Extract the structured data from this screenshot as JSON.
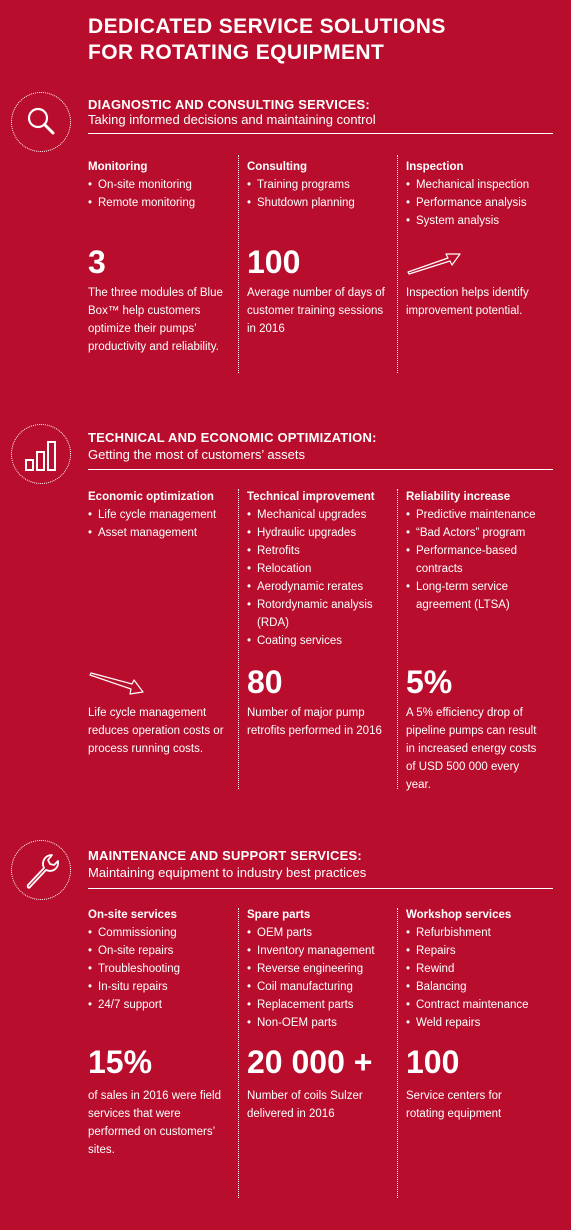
{
  "page": {
    "title_line1": "DEDICATED SERVICE SOLUTIONS",
    "title_line2": "FOR ROTATING EQUIPMENT"
  },
  "sections": [
    {
      "icon": "magnifier-icon",
      "heading": "DIAGNOSTIC AND CONSULTING SERVICES:",
      "subheading": "Taking informed decisions and maintaining control",
      "columns": [
        {
          "title": "Monitoring",
          "items": [
            "On-site monitoring",
            "Remote monitoring"
          ],
          "stat": "3",
          "description": "The three modules of Blue Box™ help customers optimize their pumps’ productivity and reliability."
        },
        {
          "title": "Consulting",
          "items": [
            "Training programs",
            "Shutdown planning"
          ],
          "stat": "100",
          "description": "Average number of days of customer training sessions in 2016"
        },
        {
          "title": "Inspection",
          "items": [
            "Mechanical inspection",
            "Performance analysis",
            "System analysis"
          ],
          "stat_icon": "arrow-up-right-icon",
          "description": "Inspection helps identify improvement potential."
        }
      ]
    },
    {
      "icon": "bar-chart-icon",
      "heading": "TECHNICAL AND ECONOMIC OPTIMIZATION:",
      "subheading": "Getting the most of customers’ assets",
      "columns": [
        {
          "title": "Economic optimization",
          "items": [
            "Life cycle management",
            "Asset management"
          ],
          "stat_icon": "arrow-down-right-icon",
          "description": "Life cycle management reduces operation costs or process running costs."
        },
        {
          "title": "Technical improvement",
          "items": [
            "Mechanical upgrades",
            "Hydraulic upgrades",
            "Retrofits",
            "Relocation",
            "Aerodynamic rerates",
            "Rotordynamic analysis (RDA)",
            "Coating services"
          ],
          "stat": "80",
          "description": "Number of major pump retrofits performed in 2016"
        },
        {
          "title": "Reliability increase",
          "items": [
            "Predictive maintenance",
            "“Bad Actors” program",
            "Performance-based contracts",
            "Long-term service agreement (LTSA)"
          ],
          "stat": "5%",
          "description": "A 5% efficiency drop of pipeline pumps can result in increased energy costs of USD 500 000 every year."
        }
      ]
    },
    {
      "icon": "wrench-icon",
      "heading": "MAINTENANCE AND SUPPORT SERVICES:",
      "subheading": "Maintaining equipment to industry best practices",
      "columns": [
        {
          "title": "On-site services",
          "items": [
            "Commissioning",
            "On-site repairs",
            "Troubleshooting",
            "In-situ repairs",
            "24/7 support"
          ],
          "stat": "15%",
          "description": "of sales in 2016 were field services that were performed on customers’ sites."
        },
        {
          "title": "Spare parts",
          "items": [
            "OEM parts",
            "Inventory management",
            "Reverse engineering",
            "Coil manufacturing",
            "Replacement parts",
            "Non-OEM parts"
          ],
          "stat": "20 000 +",
          "description": "Number of coils Sulzer delivered in 2016"
        },
        {
          "title": "Workshop services",
          "items": [
            "Refurbishment",
            "Repairs",
            "Rewind",
            "Balancing",
            "Contract maintenance",
            "Weld repairs"
          ],
          "stat": "100",
          "description": "Service centers for rotating equipment"
        }
      ]
    }
  ],
  "colors": {
    "background": "#b80d2c",
    "foreground": "#ffffff"
  }
}
